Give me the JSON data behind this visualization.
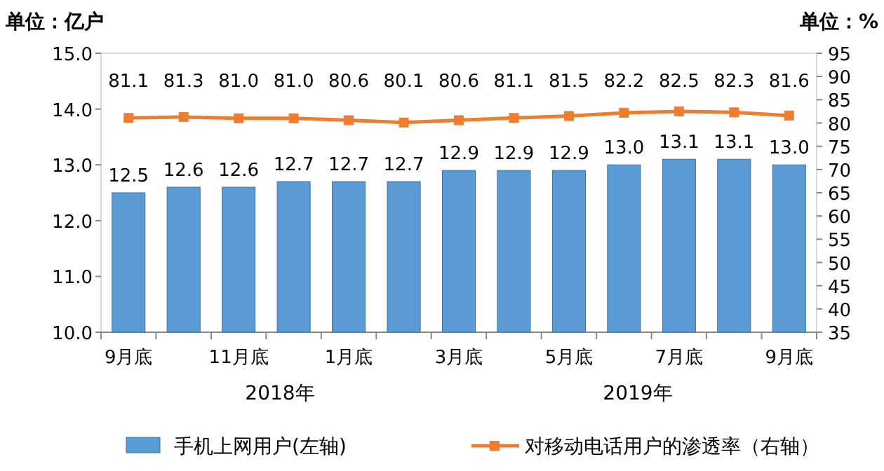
{
  "chart_data": {
    "type": "bar",
    "ylabel": "单位：亿户",
    "y2label": "单位：%",
    "categories": [
      "9月底",
      null,
      "11月底",
      null,
      "1月底",
      null,
      "3月底",
      null,
      "5月底",
      null,
      "7月底",
      null,
      "9月底"
    ],
    "series": [
      {
        "name": "手机上网用户(左轴)",
        "color": "#5b9bd5",
        "values": [
          12.5,
          12.6,
          12.6,
          12.7,
          12.7,
          12.7,
          12.9,
          12.9,
          12.9,
          13.0,
          13.1,
          13.1,
          13.0
        ],
        "value_labels": [
          "12.5",
          "12.6",
          "12.6",
          "12.7",
          "12.7",
          "12.7",
          "12.9",
          "12.9",
          "12.9",
          "13.0",
          "13.1",
          "13.1",
          "13.0"
        ]
      },
      {
        "name": "对移动电话用户的渗透率（右轴）",
        "type": "line",
        "axis": "y2",
        "color": "#ed7d31",
        "marker": "square",
        "values": [
          81.1,
          81.3,
          81.0,
          81.0,
          80.6,
          80.1,
          80.6,
          81.1,
          81.5,
          82.2,
          82.5,
          82.3,
          81.6
        ],
        "value_labels": [
          "81.1",
          "81.3",
          "81.0",
          "81.0",
          "80.6",
          "80.1",
          "80.6",
          "81.1",
          "81.5",
          "82.2",
          "82.5",
          "82.3",
          "81.6"
        ]
      }
    ],
    "ylim": [
      10,
      15
    ],
    "yticks": [
      {
        "value": 10,
        "label": "10.0"
      },
      {
        "value": 11,
        "label": "11.0"
      },
      {
        "value": 12,
        "label": "12.0"
      },
      {
        "value": 13,
        "label": "13.0"
      },
      {
        "value": 14,
        "label": "14.0"
      },
      {
        "value": 15,
        "label": "15.0"
      }
    ],
    "y2lim": [
      35,
      95
    ],
    "y2ticks": [
      35,
      40,
      45,
      50,
      55,
      60,
      65,
      70,
      75,
      80,
      85,
      90,
      95
    ],
    "legend": "bottom",
    "grid": false,
    "annotations": [
      "2018年",
      "2019年"
    ]
  }
}
